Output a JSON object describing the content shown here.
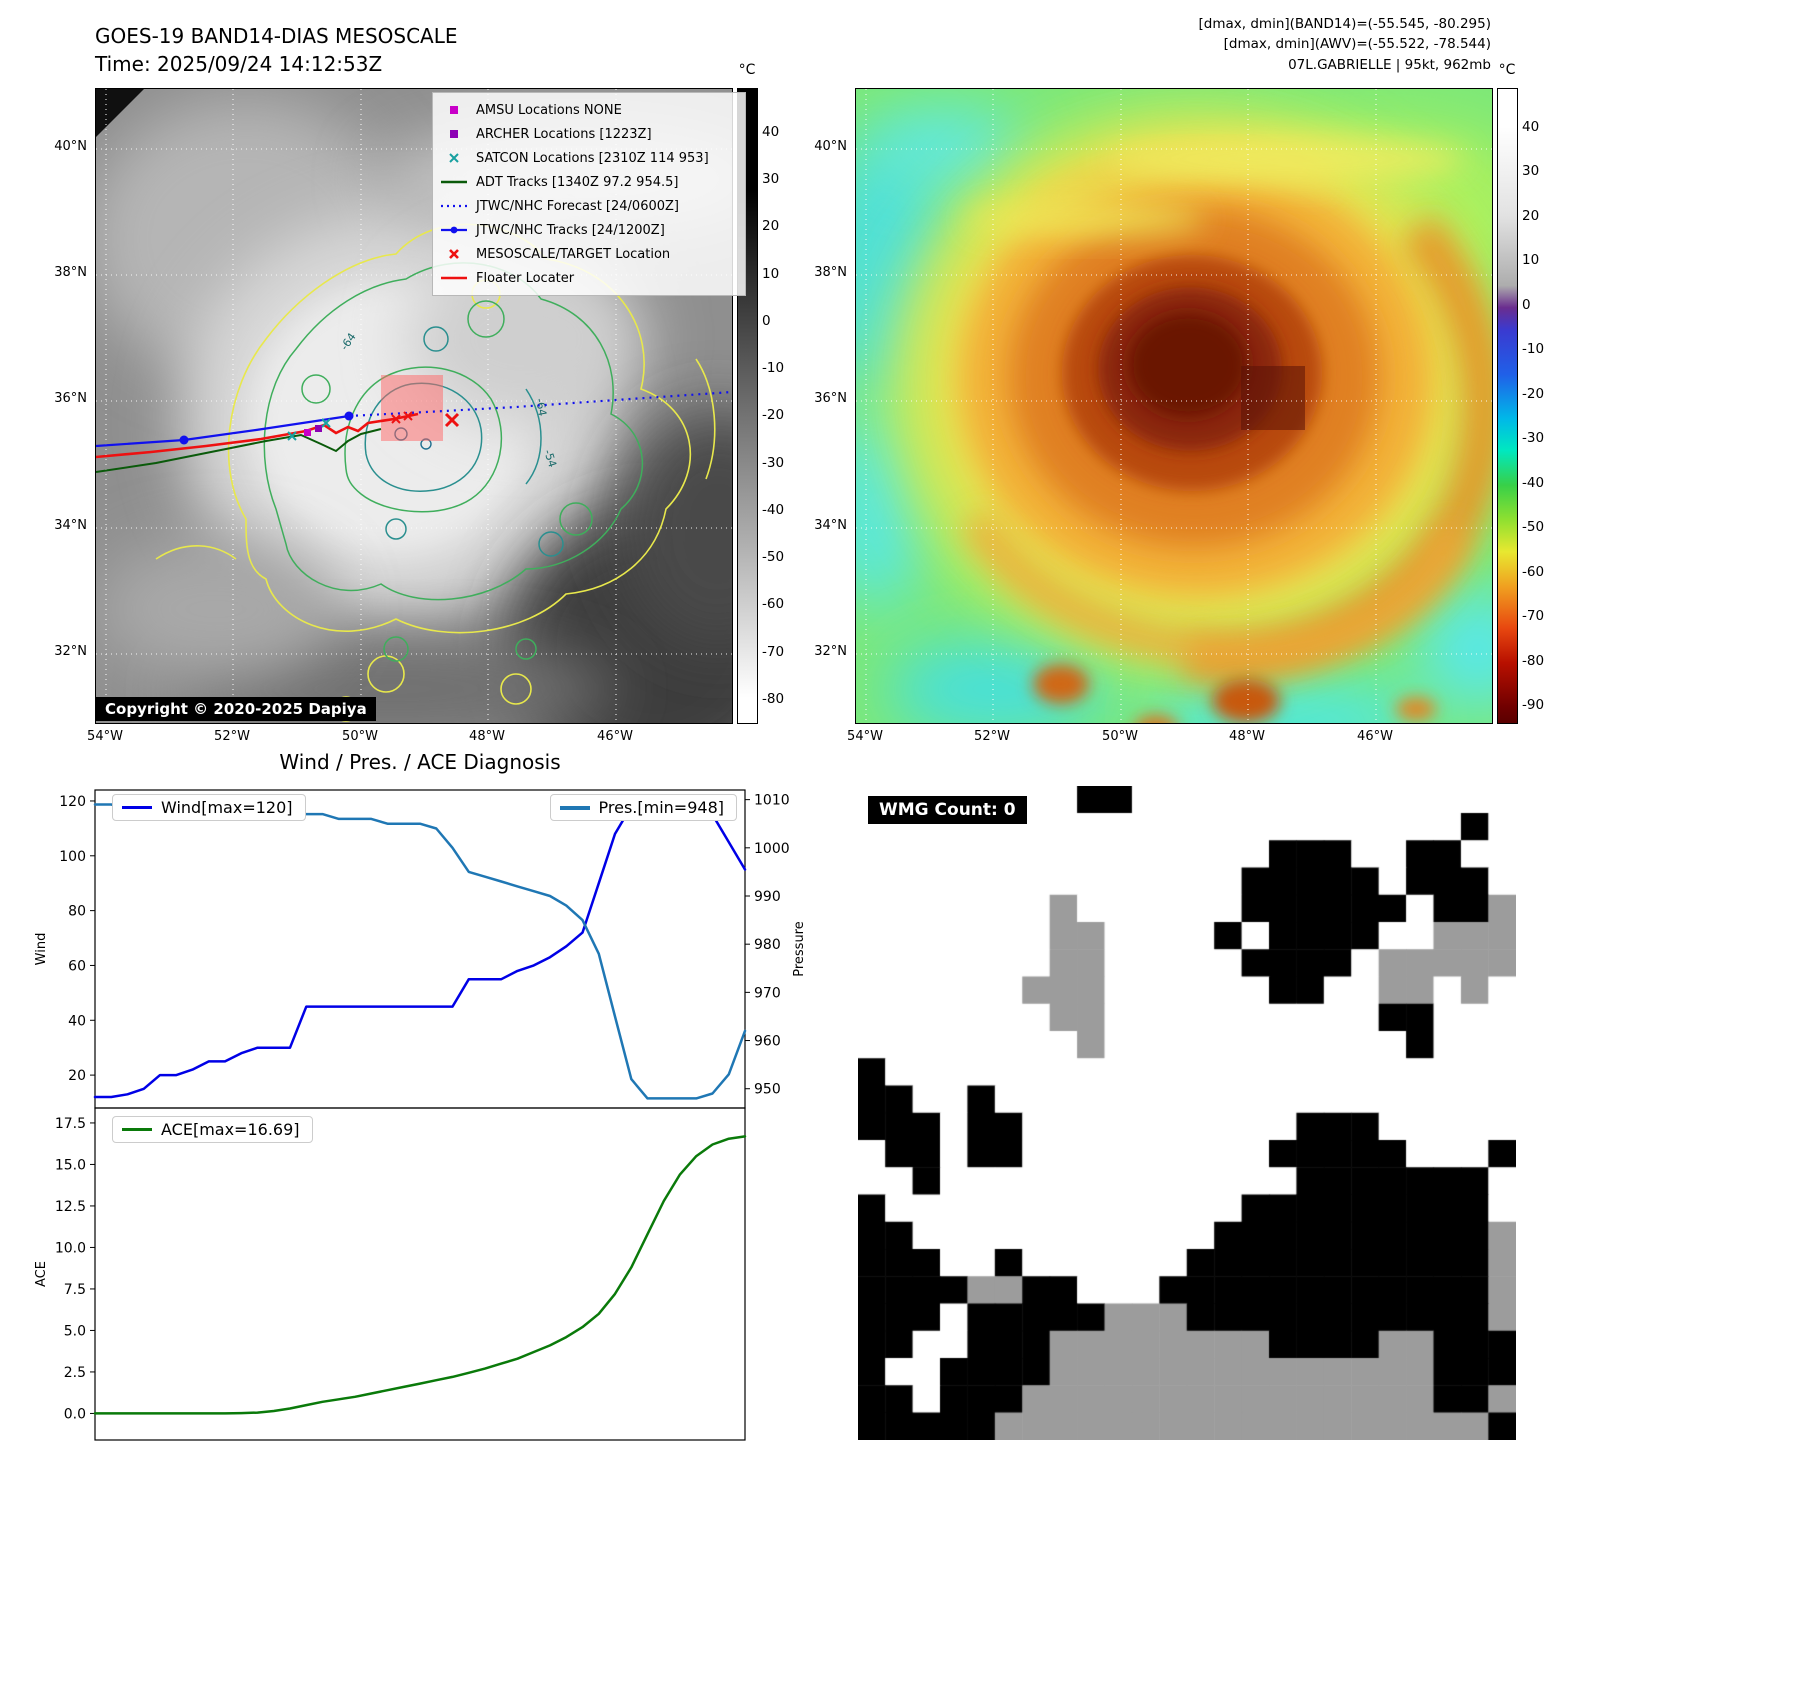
{
  "panel_band14": {
    "title": "GOES-19 BAND14-DIAS MESOSCALE",
    "time": "Time: 2025/09/24 14:12:53Z",
    "copyright": "Copyright © 2020-2025 Dapiya",
    "legend": [
      {
        "marker": "square-magenta",
        "label": "AMSU Locations NONE"
      },
      {
        "marker": "square-purple",
        "label": "ARCHER Locations [1223Z]"
      },
      {
        "marker": "x-teal",
        "label": "SATCON Locations [2310Z 114 953]"
      },
      {
        "marker": "line-darkgreen",
        "label": "ADT Tracks [1340Z 97.2 954.5]"
      },
      {
        "marker": "dotted-blue",
        "label": "JTWC/NHC Forecast [24/0600Z]"
      },
      {
        "marker": "line-blue-dot",
        "label": "JTWC/NHC Tracks [24/1200Z]"
      },
      {
        "marker": "x-red",
        "label": "MESOSCALE/TARGET Location"
      },
      {
        "marker": "line-red",
        "label": "Floater Locater"
      }
    ],
    "lat_ticks": [
      "40°N",
      "38°N",
      "36°N",
      "34°N",
      "32°N"
    ],
    "lon_ticks": [
      "54°W",
      "52°W",
      "50°W",
      "48°W",
      "46°W"
    ],
    "contour_labels": [
      "-64",
      "-64",
      "-54"
    ],
    "colorbar": {
      "unit": "°C",
      "ticks": [
        40,
        30,
        20,
        10,
        0,
        -10,
        -20,
        -30,
        -40,
        -50,
        -60,
        -70,
        -80
      ]
    }
  },
  "panel_awv": {
    "header_lines": [
      "[dmax, dmin](BAND14)=(-55.545, -80.295)",
      "[dmax, dmin](AWV)=(-55.522, -78.544)",
      "07L.GABRIELLE | 95kt, 962mb"
    ],
    "lat_ticks": [
      "40°N",
      "38°N",
      "36°N",
      "34°N",
      "32°N"
    ],
    "lon_ticks": [
      "54°W",
      "52°W",
      "50°W",
      "48°W",
      "46°W"
    ],
    "colorbar": {
      "unit": "°C",
      "ticks": [
        40,
        30,
        20,
        10,
        0,
        -10,
        -20,
        -30,
        -40,
        -50,
        -60,
        -70,
        -80,
        -90
      ]
    }
  },
  "chart_data": [
    {
      "type": "line",
      "title": "Wind / Pres. / ACE Diagnosis",
      "ylabel_left": "Wind",
      "ylabel_right": "Pressure",
      "ylim_left": [
        8,
        124
      ],
      "ylim_right": [
        946,
        1012
      ],
      "yticks_left": [
        20,
        40,
        60,
        80,
        100,
        120
      ],
      "yticks_right": [
        950,
        960,
        970,
        980,
        990,
        1000,
        1010
      ],
      "legend_left": "Wind[max=120]",
      "legend_right": "Pres.[min=948]",
      "grid": false,
      "series": [
        {
          "name": "Wind",
          "axis": "left",
          "color": "#0000e6",
          "values": [
            12,
            12,
            13,
            15,
            20,
            20,
            22,
            25,
            25,
            28,
            30,
            30,
            30,
            45,
            45,
            45,
            45,
            45,
            45,
            45,
            45,
            45,
            45,
            55,
            55,
            55,
            58,
            60,
            63,
            67,
            72,
            90,
            108,
            118,
            120,
            120,
            120,
            120,
            115,
            105,
            95
          ]
        },
        {
          "name": "Pres.",
          "axis": "right",
          "color": "#1f77b4",
          "values": [
            1009,
            1009,
            1008,
            1008,
            1008,
            1008,
            1008,
            1008,
            1008,
            1008,
            1007,
            1007,
            1007,
            1007,
            1007,
            1006,
            1006,
            1006,
            1005,
            1005,
            1005,
            1004,
            1000,
            995,
            994,
            993,
            992,
            991,
            990,
            988,
            985,
            978,
            965,
            952,
            948,
            948,
            948,
            948,
            949,
            953,
            962
          ]
        }
      ]
    },
    {
      "type": "line",
      "ylabel_left": "ACE",
      "ylim_left": [
        -1.6,
        18.4
      ],
      "yticks_left": [
        0.0,
        2.5,
        5.0,
        7.5,
        10.0,
        12.5,
        15.0,
        17.5
      ],
      "ytick_decimals_left": 1,
      "legend_left": "ACE[max=16.69]",
      "grid": false,
      "series": [
        {
          "name": "ACE",
          "axis": "left",
          "color": "#0a7a0a",
          "values": [
            0,
            0,
            0,
            0,
            0,
            0,
            0,
            0,
            0,
            0.02,
            0.05,
            0.15,
            0.3,
            0.5,
            0.7,
            0.85,
            1.0,
            1.2,
            1.4,
            1.6,
            1.8,
            2.0,
            2.2,
            2.45,
            2.7,
            3.0,
            3.3,
            3.7,
            4.1,
            4.6,
            5.2,
            6.0,
            7.2,
            8.8,
            10.8,
            12.8,
            14.4,
            15.5,
            16.2,
            16.55,
            16.69
          ]
        }
      ]
    }
  ],
  "panel_wmg": {
    "label": "WMG Count: 0",
    "colors": {
      ".": "#ffffff",
      "#": "#000000",
      "g": "#9c9c9c"
    },
    "grid": [
      "........##..............",
      "......................#.",
      "...............###..##..",
      "..............#####.###.",
      ".......g......######.##g",
      ".......gg....#.####..ggg",
      ".......gg.....####.ggggg",
      "......ggg......##..gg.g.",
      ".......gg..........##...",
      "........g...........#...",
      "#.......................",
      "##..#...................",
      "###.##..........###.....",
      ".##.##.........#####...#",
      "..#.............#######.",
      "#.............#########.",
      "##...........##########g",
      "###..#......###########g",
      "####gg##...############g",
      "###.#####ggg###########g",
      "##..###gggggggg####gg###",
      "#..####gggggggggggggg###",
      "##.###ggggggggggggggg##g",
      "#####gggggggggggggggggg#"
    ]
  }
}
